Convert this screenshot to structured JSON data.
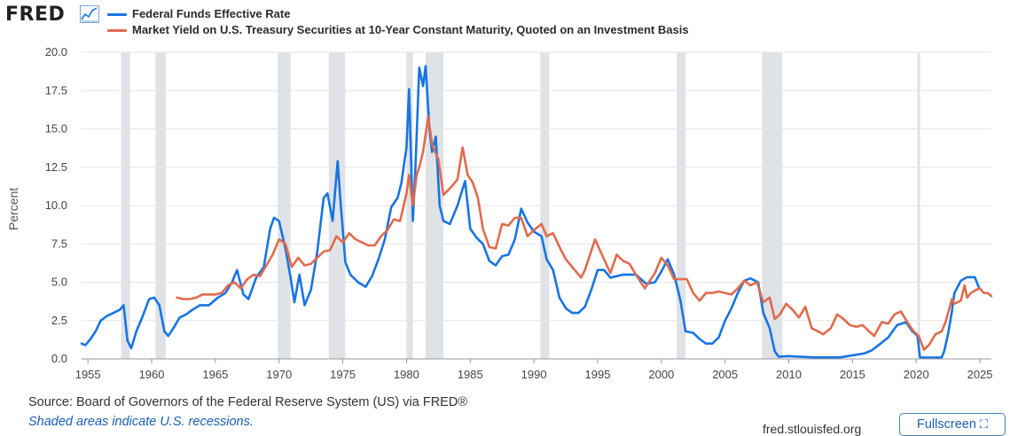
{
  "brand": {
    "logo_text": "FRED",
    "logo_icon": "line-graph-icon"
  },
  "colors": {
    "series_fedfunds": "#1874e3",
    "series_gs10": "#e06b4e",
    "recession": "#dfe2e6",
    "grid": "#e5e5e5"
  },
  "footer": {
    "source": "Source: Board of Governors of the Federal Reserve System (US) via FRED®",
    "recession_note": "Shaded areas indicate U.S. recessions.",
    "site": "fred.stlouisfed.org",
    "fullscreen_label": "Fullscreen",
    "fullscreen_icon": "expand-icon"
  },
  "chart_data": {
    "type": "line",
    "title": "",
    "xlabel": "",
    "ylabel": "Percent",
    "xlim": [
      1954.5,
      2025.9
    ],
    "ylim": [
      0,
      20
    ],
    "x_ticks": [
      1955,
      1960,
      1965,
      1970,
      1975,
      1980,
      1985,
      1990,
      1995,
      2000,
      2005,
      2010,
      2015,
      2020,
      2025
    ],
    "y_ticks": [
      0,
      2.5,
      5,
      7.5,
      10,
      12.5,
      15,
      17.5,
      20
    ],
    "y_tick_labels": [
      "0.0",
      "2.5",
      "5.0",
      "7.5",
      "10.0",
      "12.5",
      "15.0",
      "17.5",
      "20.0"
    ],
    "grid": true,
    "legend_position": "top-left",
    "recessions": [
      [
        1957.6,
        1958.3
      ],
      [
        1960.3,
        1961.1
      ],
      [
        1969.9,
        1970.9
      ],
      [
        1973.9,
        1975.2
      ],
      [
        1980.0,
        1980.5
      ],
      [
        1981.5,
        1982.9
      ],
      [
        1990.5,
        1991.2
      ],
      [
        2001.2,
        2001.9
      ],
      [
        2007.9,
        2009.5
      ],
      [
        2020.1,
        2020.3
      ]
    ],
    "series": [
      {
        "name": "Federal Funds Effective Rate",
        "x": [
          1954.5,
          1954.8,
          1955.2,
          1955.6,
          1956.0,
          1956.5,
          1957.0,
          1957.5,
          1957.8,
          1958.1,
          1958.4,
          1958.8,
          1959.3,
          1959.8,
          1960.2,
          1960.6,
          1961.0,
          1961.3,
          1961.7,
          1962.2,
          1962.7,
          1963.2,
          1963.8,
          1964.5,
          1965.2,
          1965.8,
          1966.3,
          1966.7,
          1967.2,
          1967.6,
          1968.2,
          1968.8,
          1969.3,
          1969.6,
          1970.0,
          1970.5,
          1970.9,
          1971.2,
          1971.6,
          1972.0,
          1972.5,
          1973.0,
          1973.5,
          1973.8,
          1974.2,
          1974.6,
          1974.8,
          1975.2,
          1975.6,
          1976.2,
          1976.8,
          1977.3,
          1977.8,
          1978.3,
          1978.8,
          1979.3,
          1979.6,
          1980.0,
          1980.2,
          1980.5,
          1980.7,
          1981.0,
          1981.3,
          1981.5,
          1981.8,
          1982.0,
          1982.3,
          1982.6,
          1982.9,
          1983.4,
          1984.0,
          1984.6,
          1985.0,
          1985.5,
          1986.0,
          1986.5,
          1987.0,
          1987.5,
          1988.0,
          1988.5,
          1989.0,
          1989.5,
          1990.0,
          1990.6,
          1991.0,
          1991.5,
          1992.0,
          1992.5,
          1993.0,
          1993.5,
          1994.0,
          1994.5,
          1995.0,
          1995.5,
          1996.0,
          1997.0,
          1998.0,
          1998.8,
          1999.5,
          2000.0,
          2000.5,
          2001.0,
          2001.5,
          2001.9,
          2002.5,
          2003.0,
          2003.5,
          2004.0,
          2004.5,
          2005.0,
          2005.5,
          2006.0,
          2006.5,
          2007.0,
          2007.6,
          2008.0,
          2008.5,
          2008.9,
          2009.2,
          2010.0,
          2012.0,
          2014.0,
          2015.9,
          2016.5,
          2017.2,
          2017.8,
          2018.5,
          2019.2,
          2019.7,
          2020.1,
          2020.3,
          2021.0,
          2022.0,
          2022.2,
          2022.5,
          2022.8,
          2023.0,
          2023.5,
          2024.0,
          2024.6,
          2024.9
        ],
        "y": [
          1.0,
          0.9,
          1.3,
          1.8,
          2.5,
          2.8,
          3.0,
          3.2,
          3.5,
          1.2,
          0.7,
          1.8,
          2.8,
          3.9,
          4.0,
          3.5,
          1.8,
          1.5,
          2.0,
          2.7,
          2.9,
          3.2,
          3.5,
          3.5,
          4.0,
          4.3,
          5.0,
          5.8,
          4.2,
          3.9,
          5.3,
          6.0,
          8.5,
          9.2,
          9.0,
          7.2,
          5.3,
          3.7,
          5.5,
          3.5,
          4.5,
          7.0,
          10.5,
          10.8,
          9.0,
          12.9,
          10.5,
          6.3,
          5.5,
          5.0,
          4.7,
          5.4,
          6.5,
          7.8,
          9.9,
          10.5,
          11.5,
          13.8,
          17.6,
          9.0,
          12.5,
          19.0,
          17.8,
          19.1,
          15.0,
          13.5,
          14.5,
          10.0,
          9.0,
          8.8,
          10.0,
          11.6,
          8.5,
          7.9,
          7.5,
          6.4,
          6.1,
          6.7,
          6.8,
          7.8,
          9.8,
          8.9,
          8.3,
          8.0,
          6.5,
          5.8,
          4.0,
          3.3,
          3.0,
          3.0,
          3.4,
          4.5,
          5.8,
          5.8,
          5.3,
          5.5,
          5.5,
          4.9,
          5.0,
          5.7,
          6.5,
          5.5,
          3.8,
          1.8,
          1.7,
          1.3,
          1.0,
          1.0,
          1.4,
          2.5,
          3.3,
          4.3,
          5.1,
          5.25,
          5.0,
          3.0,
          2.0,
          0.5,
          0.15,
          0.18,
          0.1,
          0.1,
          0.35,
          0.55,
          1.0,
          1.4,
          2.2,
          2.4,
          1.8,
          1.5,
          0.1,
          0.08,
          0.1,
          0.5,
          1.6,
          3.1,
          4.3,
          5.1,
          5.33,
          5.33,
          4.7
        ],
        "color": "#1874e3"
      },
      {
        "name": "Market Yield on U.S. Treasury Securities at 10-Year Constant Maturity, Quoted on an Investment Basis",
        "x": [
          1962.0,
          1962.5,
          1963.0,
          1963.5,
          1964.0,
          1964.5,
          1965.0,
          1965.5,
          1966.0,
          1966.5,
          1967.0,
          1967.5,
          1968.0,
          1968.5,
          1969.0,
          1969.5,
          1970.0,
          1970.5,
          1971.0,
          1971.5,
          1972.0,
          1972.5,
          1973.0,
          1973.5,
          1974.0,
          1974.5,
          1975.0,
          1975.5,
          1976.0,
          1976.5,
          1977.0,
          1977.5,
          1978.0,
          1978.5,
          1979.0,
          1979.5,
          1980.0,
          1980.2,
          1980.5,
          1980.8,
          1981.0,
          1981.3,
          1981.7,
          1982.0,
          1982.5,
          1982.9,
          1983.5,
          1984.0,
          1984.4,
          1984.8,
          1985.2,
          1985.6,
          1986.0,
          1986.5,
          1987.0,
          1987.5,
          1988.0,
          1988.5,
          1989.0,
          1989.5,
          1990.0,
          1990.6,
          1991.0,
          1991.5,
          1992.0,
          1992.5,
          1993.0,
          1993.7,
          1994.0,
          1994.8,
          1995.5,
          1996.0,
          1996.5,
          1997.0,
          1997.5,
          1998.0,
          1998.7,
          1999.5,
          2000.0,
          2000.5,
          2001.0,
          2001.5,
          2002.0,
          2002.5,
          2003.0,
          2003.5,
          2004.0,
          2004.5,
          2005.0,
          2005.5,
          2006.0,
          2006.5,
          2007.0,
          2007.5,
          2008.0,
          2008.5,
          2008.9,
          2009.3,
          2009.8,
          2010.3,
          2010.8,
          2011.3,
          2011.8,
          2012.3,
          2012.7,
          2013.3,
          2013.8,
          2014.3,
          2014.8,
          2015.3,
          2015.8,
          2016.3,
          2016.7,
          2017.3,
          2017.8,
          2018.3,
          2018.8,
          2019.3,
          2019.8,
          2020.2,
          2020.6,
          2021.0,
          2021.5,
          2022.0,
          2022.3,
          2022.8,
          2023.0,
          2023.5,
          2023.8,
          2024.0,
          2024.3,
          2024.7,
          2025.0,
          2025.3,
          2025.6,
          2025.9
        ],
        "y": [
          4.0,
          3.9,
          3.9,
          4.0,
          4.2,
          4.2,
          4.2,
          4.3,
          4.8,
          5.0,
          4.6,
          5.2,
          5.5,
          5.4,
          6.1,
          6.8,
          7.8,
          7.5,
          6.0,
          6.6,
          6.1,
          6.2,
          6.6,
          7.0,
          7.1,
          8.0,
          7.6,
          8.2,
          7.8,
          7.6,
          7.4,
          7.4,
          8.0,
          8.4,
          9.1,
          9.0,
          10.8,
          12.0,
          10.0,
          12.0,
          12.5,
          13.5,
          15.8,
          14.0,
          13.0,
          10.7,
          11.2,
          11.7,
          13.8,
          12.0,
          11.5,
          10.5,
          8.5,
          7.3,
          7.2,
          8.8,
          8.7,
          9.2,
          9.2,
          8.0,
          8.4,
          8.8,
          8.0,
          8.2,
          7.3,
          6.5,
          6.0,
          5.3,
          5.8,
          7.8,
          6.5,
          5.6,
          6.8,
          6.4,
          6.2,
          5.5,
          4.6,
          5.6,
          6.6,
          6.1,
          5.2,
          5.2,
          5.2,
          4.3,
          3.8,
          4.3,
          4.3,
          4.4,
          4.3,
          4.2,
          4.6,
          5.1,
          4.8,
          5.0,
          3.7,
          4.0,
          2.6,
          2.9,
          3.6,
          3.2,
          2.7,
          3.4,
          2.0,
          1.8,
          1.6,
          2.0,
          2.9,
          2.6,
          2.2,
          2.1,
          2.2,
          1.8,
          1.5,
          2.4,
          2.3,
          2.9,
          3.1,
          2.4,
          1.8,
          1.5,
          0.6,
          0.9,
          1.6,
          1.8,
          2.4,
          3.9,
          3.6,
          3.8,
          4.8,
          4.0,
          4.3,
          4.5,
          4.6,
          4.3,
          4.3,
          4.1
        ],
        "color": "#e06b4e"
      }
    ]
  }
}
